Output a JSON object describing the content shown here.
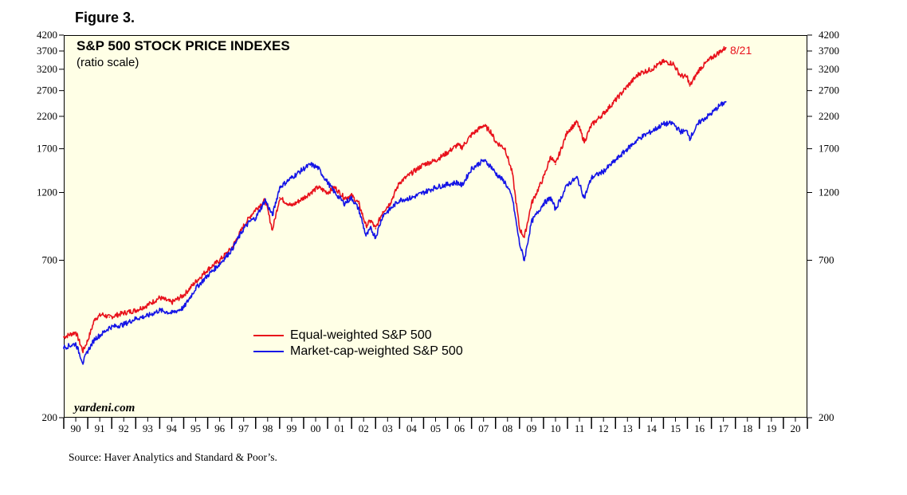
{
  "figure_label": "Figure 3.",
  "source": "Source: Haver Analytics and Standard & Poor’s.",
  "watermark": "yardeni.com",
  "colors": {
    "background": "#FFFFE6",
    "equal": "#E8111B",
    "cap": "#1414E6"
  },
  "chart_data": {
    "type": "line",
    "title": "S&P 500 STOCK PRICE INDEXES",
    "subtitle": "(ratio scale)",
    "y_scale": "log",
    "ylim": [
      200,
      4200
    ],
    "xlim": [
      1990,
      2021
    ],
    "y_ticks": [
      200,
      700,
      1200,
      1700,
      2200,
      2700,
      3200,
      3700,
      4200
    ],
    "y_tick_labels": [
      "200",
      "700",
      "1200",
      "1700",
      "2200",
      "2700",
      "3200",
      "3700",
      "4200"
    ],
    "x_tick_labels": [
      "90",
      "91",
      "92",
      "93",
      "94",
      "95",
      "96",
      "97",
      "98",
      "99",
      "00",
      "01",
      "02",
      "03",
      "04",
      "05",
      "06",
      "07",
      "08",
      "09",
      "10",
      "11",
      "12",
      "13",
      "14",
      "15",
      "16",
      "17",
      "18",
      "19",
      "20"
    ],
    "end_label": "8/21",
    "legend": [
      "Equal-weighted S&P 500",
      "Market-cap-weighted S&P 500"
    ],
    "legend_position": "lower-center",
    "series": [
      {
        "name": "Equal-weighted S&P 500",
        "color": "#E8111B",
        "x": [
          1990.0,
          1990.5,
          1990.8,
          1991.0,
          1991.3,
          1991.6,
          1991.9,
          1992.5,
          1993.0,
          1993.5,
          1994.0,
          1994.5,
          1995.0,
          1995.5,
          1996.0,
          1996.5,
          1997.0,
          1997.5,
          1997.8,
          1998.0,
          1998.4,
          1998.7,
          1999.0,
          1999.5,
          2000.0,
          2000.3,
          2000.6,
          2001.0,
          2001.3,
          2001.7,
          2002.0,
          2002.3,
          2002.6,
          2002.8,
          2003.0,
          2003.3,
          2003.6,
          2004.0,
          2004.5,
          2005.0,
          2005.5,
          2006.0,
          2006.4,
          2006.6,
          2007.0,
          2007.5,
          2007.8,
          2008.0,
          2008.4,
          2008.7,
          2009.0,
          2009.2,
          2009.5,
          2010.0,
          2010.3,
          2010.5,
          2011.0,
          2011.4,
          2011.7,
          2012.0,
          2012.5,
          2013.0,
          2013.5,
          2014.0,
          2014.5,
          2015.0,
          2015.4,
          2015.7,
          2016.0,
          2016.1,
          2016.5,
          2017.0,
          2017.3,
          2017.6
        ],
        "values": [
          380,
          395,
          340,
          370,
          440,
          455,
          445,
          460,
          470,
          490,
          520,
          500,
          530,
          590,
          650,
          700,
          770,
          920,
          1000,
          1050,
          1130,
          890,
          1150,
          1080,
          1150,
          1200,
          1250,
          1200,
          1250,
          1150,
          1170,
          1100,
          920,
          960,
          900,
          1030,
          1100,
          1300,
          1400,
          1500,
          1550,
          1650,
          1750,
          1720,
          1900,
          2050,
          1950,
          1800,
          1700,
          1400,
          900,
          840,
          1100,
          1350,
          1600,
          1500,
          1950,
          2100,
          1800,
          2050,
          2250,
          2500,
          2800,
          3100,
          3200,
          3400,
          3350,
          3050,
          3000,
          2800,
          3200,
          3500,
          3650,
          3800
        ]
      },
      {
        "name": "Market-cap-weighted S&P 500",
        "color": "#1414E6",
        "x": [
          1990.0,
          1990.5,
          1990.8,
          1991.0,
          1991.3,
          1991.6,
          1991.9,
          1992.5,
          1993.0,
          1993.5,
          1994.0,
          1994.5,
          1995.0,
          1995.5,
          1996.0,
          1996.5,
          1997.0,
          1997.5,
          1997.8,
          1998.0,
          1998.4,
          1998.7,
          1999.0,
          1999.5,
          2000.0,
          2000.3,
          2000.6,
          2001.0,
          2001.3,
          2001.7,
          2002.0,
          2002.3,
          2002.6,
          2002.8,
          2003.0,
          2003.3,
          2003.6,
          2004.0,
          2004.5,
          2005.0,
          2005.5,
          2006.0,
          2006.4,
          2006.6,
          2007.0,
          2007.5,
          2007.8,
          2008.0,
          2008.4,
          2008.7,
          2009.0,
          2009.2,
          2009.5,
          2010.0,
          2010.3,
          2010.5,
          2011.0,
          2011.4,
          2011.7,
          2012.0,
          2012.5,
          2013.0,
          2013.5,
          2014.0,
          2014.5,
          2015.0,
          2015.4,
          2015.7,
          2016.0,
          2016.1,
          2016.5,
          2017.0,
          2017.3,
          2017.6
        ],
        "values": [
          350,
          360,
          310,
          340,
          375,
          390,
          410,
          420,
          440,
          450,
          470,
          460,
          480,
          560,
          620,
          680,
          760,
          900,
          960,
          980,
          1130,
          1000,
          1250,
          1350,
          1450,
          1500,
          1460,
          1300,
          1200,
          1100,
          1150,
          1050,
          850,
          900,
          840,
          1000,
          1050,
          1130,
          1150,
          1200,
          1250,
          1280,
          1300,
          1270,
          1450,
          1550,
          1480,
          1400,
          1300,
          1150,
          800,
          700,
          950,
          1100,
          1150,
          1050,
          1280,
          1350,
          1150,
          1350,
          1420,
          1550,
          1700,
          1850,
          1950,
          2070,
          2080,
          1950,
          1950,
          1850,
          2100,
          2250,
          2380,
          2470
        ]
      }
    ]
  }
}
